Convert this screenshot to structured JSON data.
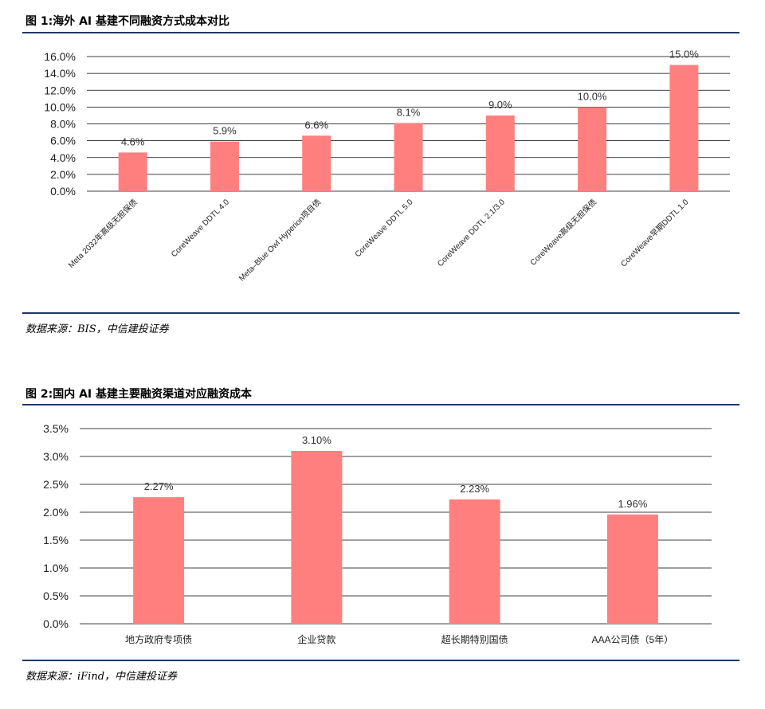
{
  "colors": {
    "bar": "#ff7f7f",
    "grid": "#000000",
    "rule": "#1f3864"
  },
  "figure1": {
    "title": "图 1:海外 AI 基建不同融资方式成本对比",
    "source": "数据来源：BIS，中信建投证券"
  },
  "figure2": {
    "title": "图 2:国内 AI 基建主要融资渠道对应融资成本",
    "source": "数据来源：iFind，中信建投证券"
  },
  "chart_data": [
    {
      "type": "bar",
      "title": "",
      "xlabel": "",
      "ylabel": "",
      "categories": [
        "Meta 2032年高级无担保债",
        "CoreWeave DDTL 4.0",
        "Meta–Blue Owl Hyperion项目债",
        "CoreWeave DDTL 5.0",
        "CoreWeave DDTL 2.1/3.0",
        "CoreWeave高级无担保债",
        "CoreWeave早期DDTL 1.0"
      ],
      "values": [
        4.6,
        5.9,
        6.6,
        8.1,
        9.0,
        10.0,
        15.0
      ],
      "data_labels": [
        "4.6%",
        "5.9%",
        "6.6%",
        "8.1%",
        "9.0%",
        "10.0%",
        "15.0%"
      ],
      "yticks": [
        "0.0%",
        "2.0%",
        "4.0%",
        "6.0%",
        "8.0%",
        "10.0%",
        "12.0%",
        "14.0%",
        "16.0%"
      ],
      "ylim": [
        0,
        16
      ],
      "grid": true,
      "legend": "none"
    },
    {
      "type": "bar",
      "title": "",
      "xlabel": "",
      "ylabel": "",
      "categories": [
        "地方政府专项债",
        "企业贷款",
        "超长期特别国债",
        "AAA公司债（5年）"
      ],
      "values": [
        2.27,
        3.1,
        2.23,
        1.96
      ],
      "data_labels": [
        "2.27%",
        "3.10%",
        "2.23%",
        "1.96%"
      ],
      "yticks": [
        "0.0%",
        "0.5%",
        "1.0%",
        "1.5%",
        "2.0%",
        "2.5%",
        "3.0%",
        "3.5%"
      ],
      "ylim": [
        0,
        3.5
      ],
      "grid": true,
      "legend": "none"
    }
  ]
}
